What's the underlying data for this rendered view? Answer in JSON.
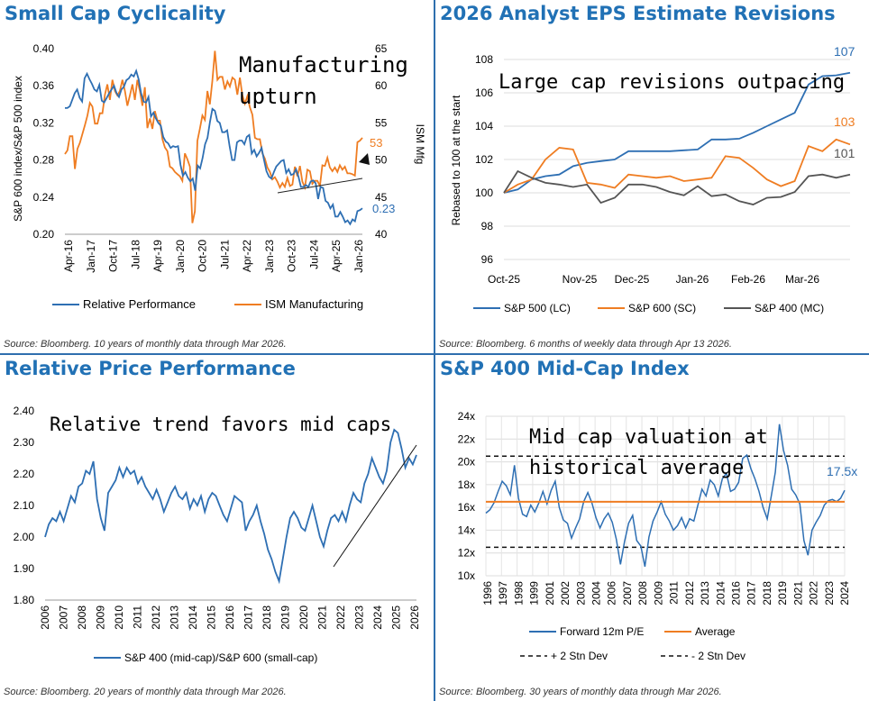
{
  "colors": {
    "blue": "#2e6fb3",
    "orange": "#ef7d22",
    "gray": "#555555",
    "title": "#2171b5",
    "border": "#2f6fae"
  },
  "panels": [
    {
      "title": "Small Cap Cyclicality",
      "source": "Source: Bloomberg. 10 years of monthly data through Mar 2026.",
      "annotation_lines": [
        "Manufacturing",
        "upturn"
      ],
      "chart_data": {
        "type": "line",
        "x_ticks": [
          "Apr-16",
          "Jan-17",
          "Oct-17",
          "Jul-18",
          "Apr-19",
          "Jan-20",
          "Oct-20",
          "Jul-21",
          "Apr-22",
          "Jan-23",
          "Oct-23",
          "Jul-24",
          "Apr-25",
          "Jan-26"
        ],
        "ylabel": "S&P 600 index/S&P 500 index",
        "ylabel_right": "ISM Mfg",
        "y_ticks": [
          "0.20",
          "0.24",
          "0.28",
          "0.32",
          "0.36",
          "0.40"
        ],
        "y_right_ticks": [
          "40",
          "45",
          "50",
          "55",
          "60",
          "65"
        ],
        "ylim": [
          0.2,
          0.4
        ],
        "y_right_lim": [
          40,
          65
        ],
        "series": [
          {
            "name": "Relative Performance",
            "axis": "left",
            "color": "#2e6fb3",
            "end_label": "0.23",
            "values": [
              0.336,
              0.336,
              0.338,
              0.345,
              0.352,
              0.356,
              0.347,
              0.343,
              0.368,
              0.373,
              0.367,
              0.362,
              0.356,
              0.354,
              0.361,
              0.344,
              0.342,
              0.347,
              0.352,
              0.356,
              0.36,
              0.352,
              0.348,
              0.356,
              0.359,
              0.366,
              0.368,
              0.372,
              0.37,
              0.376,
              0.367,
              0.352,
              0.343,
              0.342,
              0.348,
              0.327,
              0.331,
              0.325,
              0.32,
              0.317,
              0.305,
              0.3,
              0.298,
              0.293,
              0.295,
              0.294,
              0.295,
              0.275,
              0.263,
              0.267,
              0.261,
              0.257,
              0.26,
              0.247,
              0.274,
              0.271,
              0.282,
              0.297,
              0.304,
              0.321,
              0.335,
              0.333,
              0.322,
              0.32,
              0.31,
              0.31,
              0.312,
              0.295,
              0.28,
              0.28,
              0.299,
              0.301,
              0.301,
              0.297,
              0.305,
              0.307,
              0.287,
              0.291,
              0.284,
              0.288,
              0.293,
              0.28,
              0.268,
              0.262,
              0.26,
              0.267,
              0.273,
              0.276,
              0.279,
              0.28,
              0.266,
              0.27,
              0.264,
              0.265,
              0.27,
              0.262,
              0.251,
              0.251,
              0.253,
              0.251,
              0.257,
              0.258,
              0.255,
              0.238,
              0.251,
              0.25,
              0.236,
              0.234,
              0.228,
              0.232,
              0.219,
              0.219,
              0.224,
              0.219,
              0.213,
              0.215,
              0.211,
              0.216,
              0.214,
              0.225,
              0.226,
              0.228
            ]
          },
          {
            "name": "ISM Manufacturing",
            "axis": "right",
            "color": "#ef7d22",
            "end_label": "53",
            "values": [
              50.8,
              51.3,
              53.2,
              53.2,
              48.8,
              51.5,
              52.3,
              53.5,
              54.7,
              56.0,
              57.7,
              57.2,
              54.9,
              54.9,
              56.3,
              56.3,
              58.8,
              60.2,
              58.1,
              60.8,
              59.3,
              58.7,
              59.3,
              60.8,
              59.3,
              57.3,
              58.7,
              60.2,
              58.1,
              60.8,
              59.3,
              57.3,
              59.8,
              54.3,
              55.6,
              54.2,
              56.6,
              55.3,
              55.3,
              52.8,
              51.7,
              51.2,
              49.1,
              48.9,
              48.4,
              48.1,
              47.8,
              47.2,
              50.9,
              50.1,
              49.1,
              41.5,
              43.1,
              52.6,
              54.2,
              56.0,
              55.4,
              59.3,
              57.5,
              60.7,
              64.7,
              60.8,
              61.2,
              61.2,
              59.5,
              60.6,
              59.9,
              61.1,
              60.8,
              58.8,
              61.1,
              58.7,
              57.6,
              58.6,
              57.1,
              56.1,
              53.0,
              52.8,
              52.8,
              50.9,
              50.2,
              49.0,
              48.4,
              47.4,
              47.7,
              47.1,
              46.3,
              46.9,
              46.4,
              47.6,
              46.5,
              46.7,
              49.1,
              47.8,
              49.2,
              47.1,
              46.3,
              48.7,
              48.5,
              46.8,
              47.2,
              47.2,
              46.5,
              49.3,
              49.2,
              50.3,
              49.0,
              48.5,
              49.0,
              48.4,
              49.3,
              48.7,
              49.1,
              48.2,
              48.2,
              48.1,
              47.9,
              52.4,
              52.6,
              53.0
            ]
          }
        ]
      }
    },
    {
      "title": "2026 Analyst EPS Estimate Revisions",
      "source": "Source: Bloomberg. 6 months of weekly data through Apr 13 2026.",
      "annotation_lines": [
        "Large cap revisions outpacing"
      ],
      "chart_data": {
        "type": "line",
        "x_ticks": [
          "Oct-25",
          "Nov-25",
          "Dec-25",
          "Jan-26",
          "Feb-26",
          "Mar-26"
        ],
        "ylabel": "Rebased to 100 at the start",
        "y_ticks": [
          "96",
          "98",
          "100",
          "102",
          "104",
          "106",
          "108"
        ],
        "ylim": [
          96,
          108
        ],
        "series": [
          {
            "name": "S&P 500 (LC)",
            "color": "#2e6fb3",
            "end_label": "107",
            "values": [
              100,
              100.2,
              100.8,
              101.0,
              101.1,
              101.6,
              101.8,
              101.9,
              102.0,
              102.5,
              102.5,
              102.5,
              102.5,
              102.55,
              102.6,
              103.2,
              103.2,
              103.25,
              103.6,
              104.0,
              104.4,
              104.8,
              106.5,
              107.0,
              107.05,
              107.2
            ]
          },
          {
            "name": "S&P 600 (SC)",
            "color": "#ef7d22",
            "end_label": "103",
            "values": [
              100,
              100.5,
              100.8,
              102.0,
              102.7,
              102.6,
              100.6,
              100.5,
              100.3,
              101.1,
              101.0,
              100.9,
              101.0,
              100.7,
              100.8,
              100.9,
              102.2,
              102.1,
              101.5,
              100.8,
              100.4,
              100.7,
              102.8,
              102.5,
              103.2,
              102.9
            ]
          },
          {
            "name": "S&P 400 (MC)",
            "color": "#555555",
            "end_label": "101",
            "values": [
              100,
              101.3,
              100.9,
              100.6,
              100.5,
              100.35,
              100.5,
              99.4,
              99.7,
              100.5,
              100.5,
              100.35,
              100.05,
              99.85,
              100.4,
              99.8,
              99.9,
              99.5,
              99.3,
              99.7,
              99.75,
              100.05,
              101.0,
              101.1,
              100.9,
              101.1
            ]
          }
        ]
      }
    },
    {
      "title": "Relative Price Performance",
      "source": "Source: Bloomberg. 20 years of monthly data through Mar 2026.",
      "annotation_lines": [
        "Relative trend favors mid caps"
      ],
      "chart_data": {
        "type": "line",
        "x_ticks": [
          "2006",
          "2007",
          "2008",
          "2009",
          "2010",
          "2011",
          "2012",
          "2013",
          "2014",
          "2015",
          "2016",
          "2017",
          "2018",
          "2019",
          "2020",
          "2021",
          "2022",
          "2023",
          "2024",
          "2025",
          "2026"
        ],
        "y_ticks": [
          "1.80",
          "1.90",
          "2.00",
          "2.10",
          "2.20",
          "2.30",
          "2.40"
        ],
        "ylim": [
          1.8,
          2.4
        ],
        "series": [
          {
            "name": "S&P 400 (mid-cap)/S&P 600 (small-cap)",
            "color": "#2e6fb3",
            "values": [
              2.0,
              2.04,
              2.06,
              2.05,
              2.08,
              2.05,
              2.09,
              2.13,
              2.11,
              2.16,
              2.17,
              2.21,
              2.2,
              2.24,
              2.12,
              2.06,
              2.02,
              2.14,
              2.16,
              2.18,
              2.22,
              2.19,
              2.22,
              2.2,
              2.21,
              2.17,
              2.19,
              2.16,
              2.14,
              2.12,
              2.15,
              2.12,
              2.08,
              2.11,
              2.14,
              2.16,
              2.13,
              2.12,
              2.14,
              2.09,
              2.12,
              2.1,
              2.13,
              2.08,
              2.12,
              2.14,
              2.13,
              2.1,
              2.07,
              2.05,
              2.09,
              2.13,
              2.12,
              2.11,
              2.02,
              2.05,
              2.07,
              2.1,
              2.05,
              2.01,
              1.96,
              1.93,
              1.89,
              1.86,
              1.93,
              2.0,
              2.06,
              2.08,
              2.06,
              2.03,
              2.02,
              2.06,
              2.1,
              2.05,
              2.0,
              1.97,
              2.02,
              2.06,
              2.07,
              2.05,
              2.08,
              2.05,
              2.1,
              2.14,
              2.12,
              2.11,
              2.17,
              2.2,
              2.25,
              2.22,
              2.19,
              2.17,
              2.21,
              2.3,
              2.34,
              2.33,
              2.28,
              2.22,
              2.25,
              2.23,
              2.26
            ]
          }
        ]
      }
    },
    {
      "title": "S&P 400 Mid-Cap Index",
      "source": "Source: Bloomberg. 30 years of monthly data through Mar 2026.",
      "annotation_lines": [
        "Mid cap valuation at",
        "historical average"
      ],
      "chart_data": {
        "type": "line",
        "x_ticks": [
          "1996",
          "1997",
          "1998",
          "1999",
          "2001",
          "2002",
          "2003",
          "2004",
          "2006",
          "2007",
          "2008",
          "2009",
          "2011",
          "2012",
          "2013",
          "2014",
          "2016",
          "2017",
          "2018",
          "2019",
          "2021",
          "2022",
          "2023",
          "2024"
        ],
        "y_ticks": [
          "10x",
          "12x",
          "14x",
          "16x",
          "18x",
          "20x",
          "22x",
          "24x"
        ],
        "ylim": [
          10,
          24
        ],
        "end_label": "17.5x",
        "series": [
          {
            "name": "Forward 12m P/E",
            "color": "#2e6fb3",
            "values": [
              15.5,
              15.8,
              16.4,
              17.4,
              18.3,
              17.9,
              17.1,
              19.7,
              16.8,
              15.4,
              15.2,
              16.2,
              15.6,
              16.4,
              17.4,
              16.3,
              17.5,
              18.3,
              16.0,
              14.9,
              14.6,
              13.3,
              14.2,
              15.0,
              16.5,
              17.3,
              16.4,
              15.1,
              14.2,
              15.0,
              15.5,
              14.7,
              13.2,
              11.0,
              13.0,
              14.6,
              15.3,
              13.1,
              12.6,
              10.8,
              13.4,
              14.8,
              15.6,
              16.5,
              15.4,
              14.8,
              14.0,
              14.4,
              15.1,
              14.2,
              15.0,
              14.8,
              16.2,
              17.6,
              17.0,
              18.4,
              18.0,
              17.0,
              18.5,
              19.0,
              17.4,
              17.6,
              18.2,
              20.3,
              20.6,
              19.4,
              18.5,
              17.4,
              16.0,
              15.0,
              17.0,
              19.1,
              23.3,
              21.0,
              19.7,
              17.6,
              17.1,
              16.3,
              13.1,
              11.8,
              14.0,
              14.7,
              15.3,
              16.2,
              16.6,
              16.7,
              16.5,
              16.8,
              17.5
            ]
          },
          {
            "name": "Average",
            "color": "#ef7d22",
            "values": [
              16.5
            ]
          },
          {
            "name": "+ 2 Stn Dev",
            "color": "#111111",
            "dash": true,
            "values": [
              20.5
            ]
          },
          {
            "name": "- 2 Stn Dev",
            "color": "#111111",
            "dash": true,
            "values": [
              12.5
            ]
          }
        ]
      }
    }
  ]
}
